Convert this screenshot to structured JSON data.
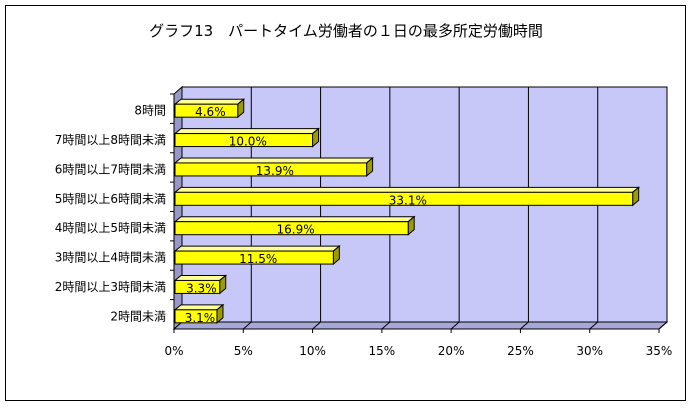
{
  "chart_data": {
    "type": "bar",
    "orientation": "horizontal",
    "style": "3d",
    "title": "グラフ13　パートタイム労働者の１日の最多所定労働時間",
    "categories": [
      "8時間",
      "7時間以上8時間未満",
      "6時間以上7時間未満",
      "5時間以上6時間未満",
      "4時間以上5時間未満",
      "3時間以上4時間未満",
      "2時間以上3時間未満",
      "2時間未満"
    ],
    "values": [
      4.6,
      10.0,
      13.9,
      33.1,
      16.9,
      11.5,
      3.3,
      3.1
    ],
    "data_labels": [
      "4.6%",
      "10.0%",
      "13.9%",
      "33.1%",
      "16.9%",
      "11.5%",
      "3.3%",
      "3.1%"
    ],
    "xlim": [
      0,
      35
    ],
    "x_ticks": [
      "0%",
      "5%",
      "10%",
      "15%",
      "20%",
      "25%",
      "30%",
      "35%"
    ],
    "grid": true,
    "legend": "none",
    "colors": {
      "bar_front": "#ffff00",
      "bar_top": "#ffff99",
      "bar_side": "#9c9c00",
      "plot_back": "#c8c8f8",
      "plot_floor": "#a8a8d8",
      "plot_wall": "#9898c8"
    }
  }
}
